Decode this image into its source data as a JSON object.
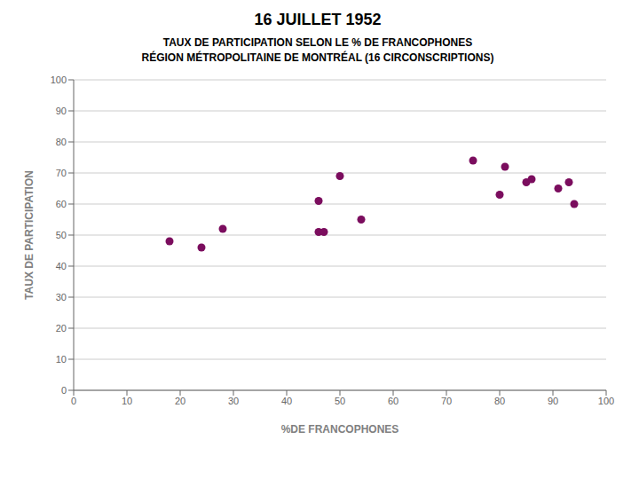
{
  "chart_data": {
    "type": "scatter",
    "title": "16 JUILLET 1952",
    "subtitle": [
      "TAUX DE PARTICIPATION SELON LE % DE FRANCOPHONES",
      "RÉGION MÉTROPOLITAINE DE MONTRÉAL (16 CIRCONSCRIPTIONS)"
    ],
    "xlabel": "%DE FRANCOPHONES",
    "ylabel": "TAUX DE PARTICIPATION",
    "x": [
      18,
      24,
      28,
      46,
      46,
      47,
      50,
      54,
      75,
      80,
      81,
      85,
      86,
      91,
      93,
      94
    ],
    "values": [
      48,
      46,
      52,
      61,
      51,
      51,
      69,
      55,
      74,
      63,
      72,
      67,
      68,
      65,
      67,
      60
    ],
    "color": "#7B0D5E",
    "xlim": [
      0,
      100
    ],
    "ylim": [
      0,
      100
    ],
    "xticks": [
      0,
      10,
      20,
      30,
      40,
      50,
      60,
      70,
      80,
      90,
      100
    ],
    "yticks": [
      0,
      10,
      20,
      30,
      40,
      50,
      60,
      70,
      80,
      90,
      100
    ],
    "grid": "y"
  }
}
